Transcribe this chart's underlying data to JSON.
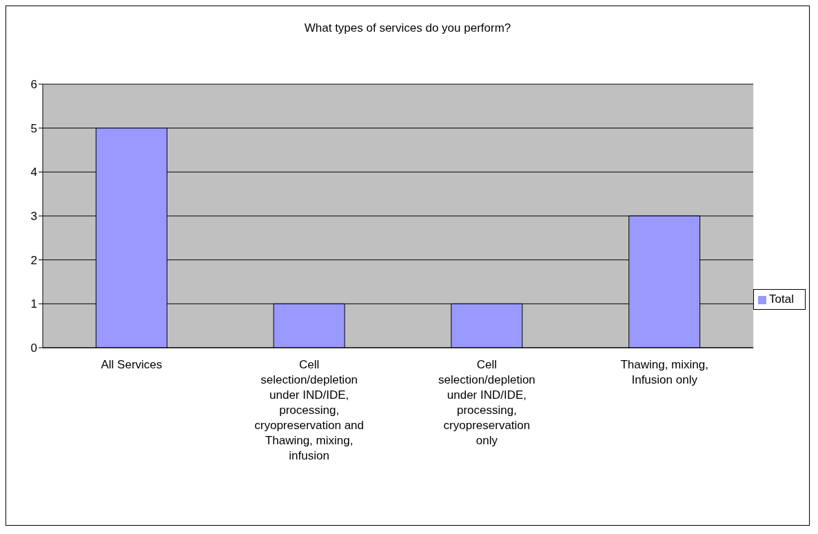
{
  "chart_data": {
    "type": "bar",
    "title": "What types of services do you perform?",
    "categories": [
      "All Services",
      "Cell selection/depletion under IND/IDE, processing, cryopreservation and Thawing, mixing, infusion",
      "Cell selection/depletion under IND/IDE, processing, cryopreservation only",
      "Thawing, mixing, Infusion only"
    ],
    "series": [
      {
        "name": "Total",
        "color": "#9999ff",
        "values": [
          5,
          1,
          1,
          3
        ]
      }
    ],
    "ylim": [
      0,
      6
    ],
    "yticks": [
      0,
      1,
      2,
      3,
      4,
      5,
      6
    ],
    "grid": "y",
    "legend": "right"
  }
}
